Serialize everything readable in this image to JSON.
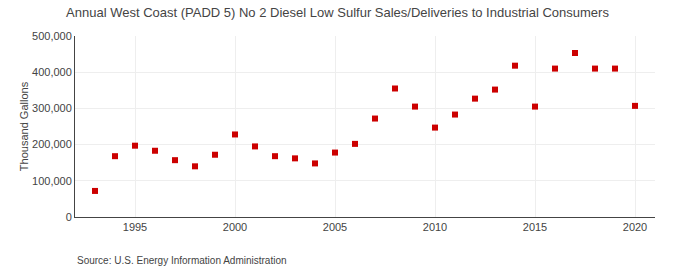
{
  "chart_data": {
    "type": "scatter",
    "title": "Annual West Coast (PADD 5) No 2 Diesel Low Sulfur Sales/Deliveries to Industrial Consumers",
    "ylabel": "Thousand Gallons",
    "annotations": [
      "Source: U.S. Energy Information Administration"
    ],
    "x": [
      1993,
      1994,
      1995,
      1996,
      1997,
      1998,
      1999,
      2000,
      2001,
      2002,
      2003,
      2004,
      2005,
      2006,
      2007,
      2008,
      2009,
      2010,
      2011,
      2012,
      2013,
      2014,
      2015,
      2016,
      2017,
      2018,
      2019,
      2020
    ],
    "values": [
      72000,
      168000,
      197000,
      183000,
      157000,
      140000,
      172000,
      228000,
      195000,
      168000,
      162000,
      148000,
      178000,
      202000,
      272000,
      355000,
      305000,
      247000,
      283000,
      327000,
      352000,
      418000,
      305000,
      410000,
      453000,
      410000,
      410000,
      307000
    ],
    "color": "#cc0000",
    "marker": "square",
    "xlim": [
      1992,
      2021
    ],
    "ylim": [
      0,
      500000
    ],
    "xticks": [
      1995,
      2000,
      2005,
      2010,
      2015,
      2020
    ],
    "yticks": [
      0,
      {
        "value": 100000,
        "label": "100,000"
      },
      {
        "value": 200000,
        "label": "200,000"
      },
      {
        "value": 300000,
        "label": "300,000"
      },
      {
        "value": 400000,
        "label": "400,000"
      },
      {
        "value": 500000,
        "label": "500,000"
      }
    ],
    "grid": true
  }
}
